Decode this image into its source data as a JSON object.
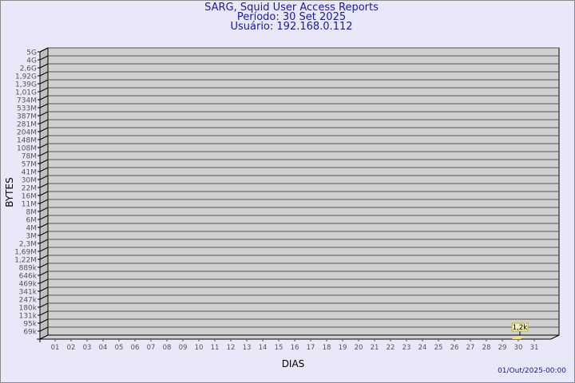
{
  "title_lines": [
    "SARG, Squid User Access Reports",
    "Período: 30 Set 2025",
    "Usuário: 192.168.0.112"
  ],
  "footer": "01/Out/2025-00:00",
  "chart_data": {
    "type": "bar",
    "title": "SARG, Squid User Access Reports",
    "xlabel": "DIAS",
    "ylabel": "BYTES",
    "yscale": "log",
    "categories": [
      "01",
      "02",
      "03",
      "04",
      "05",
      "06",
      "07",
      "08",
      "09",
      "10",
      "11",
      "12",
      "13",
      "14",
      "15",
      "16",
      "17",
      "18",
      "19",
      "20",
      "21",
      "22",
      "23",
      "24",
      "25",
      "26",
      "27",
      "28",
      "29",
      "30",
      "31"
    ],
    "y_tick_labels": [
      "5G",
      "4G",
      "2,6G",
      "1,92G",
      "1,39G",
      "1,01G",
      "734M",
      "533M",
      "387M",
      "281M",
      "204M",
      "148M",
      "108M",
      "78M",
      "57M",
      "41M",
      "30M",
      "22M",
      "16M",
      "11M",
      "8M",
      "6M",
      "4M",
      "3M",
      "2,3M",
      "1,69M",
      "1,22M",
      "889k",
      "646k",
      "469k",
      "341k",
      "247k",
      "180k",
      "131k",
      "95k",
      "69k"
    ],
    "series": [
      {
        "values": [
          null,
          null,
          null,
          null,
          null,
          null,
          null,
          null,
          null,
          null,
          null,
          null,
          null,
          null,
          null,
          null,
          null,
          null,
          null,
          null,
          null,
          null,
          null,
          null,
          null,
          null,
          null,
          null,
          null,
          1200,
          null
        ]
      }
    ],
    "data_labels": [
      {
        "category": "30",
        "text": "1,2k"
      }
    ],
    "grid": true,
    "colors": {
      "wall": "#d0d0d0",
      "side": "#c0c0c0",
      "bar": "#f8e08a",
      "label_bg": "#f0f0b0",
      "text": "#1a1aa0",
      "tick": "#555555"
    }
  }
}
